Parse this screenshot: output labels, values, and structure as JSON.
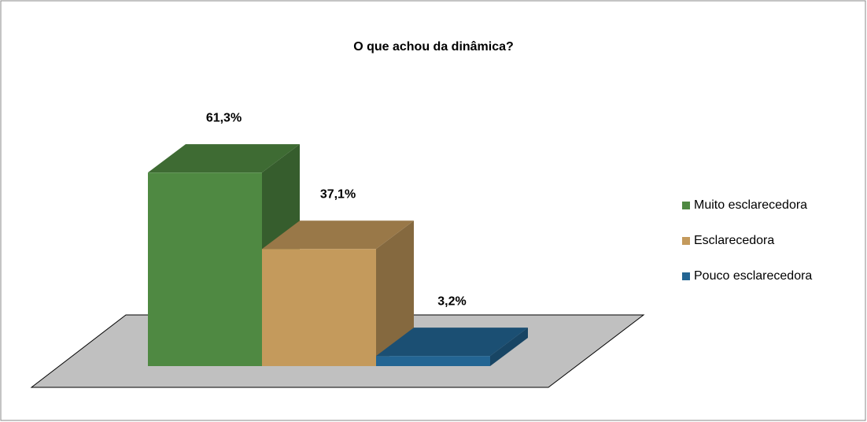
{
  "chart_data": {
    "type": "bar",
    "title": "O que achou da dinâmica?",
    "series": [
      {
        "name": "Muito esclarecedora",
        "color": "#4f8942",
        "values": [
          61.3
        ],
        "value_labels": [
          "61,3%"
        ]
      },
      {
        "name": "Esclarecedora",
        "color": "#c49a5c",
        "values": [
          37.1
        ],
        "value_labels": [
          "37,1%"
        ]
      },
      {
        "name": "Pouco esclarecedora",
        "color": "#236593",
        "values": [
          3.2
        ],
        "value_labels": [
          "3,2%"
        ]
      }
    ]
  }
}
